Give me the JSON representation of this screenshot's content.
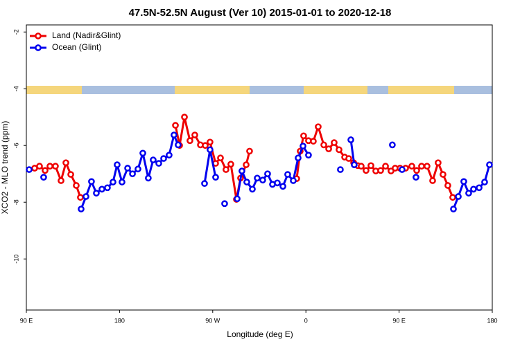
{
  "chart_data": {
    "type": "line",
    "title": "47.5N-52.5N August (Ver 10)   2015-01-01 to 2020-12-18",
    "xlabel": "Longitude (deg E)",
    "ylabel": "XCO2 - MLO trend (ppm)",
    "xlim": [
      90,
      540
    ],
    "xticks": [
      {
        "value": 90,
        "label": "90 E"
      },
      180,
      {
        "value": 270,
        "label": "90 W"
      },
      {
        "value": 360,
        "label": "0"
      },
      {
        "value": 450,
        "label": "90 E"
      },
      {
        "value": 540,
        "label": "180"
      }
    ],
    "ylim": [
      -11.8,
      -1.75
    ],
    "yticks": [
      -2,
      -4,
      -6,
      -8,
      -10
    ],
    "legend": "top-left",
    "series": [
      {
        "name": "Land (Nadir&Glint)",
        "color": "#ee0000",
        "x": [
          98.0,
          102.7,
          108.1,
          112.8,
          118.1,
          123.5,
          128.2,
          132.9,
          138.2,
          142.2,
          null,
          234.0,
          238.0,
          242.7,
          248.0,
          252.7,
          258.1,
          262.8,
          267.4,
          272.8,
          277.5,
          282.8,
          287.5,
          292.9,
          296.9,
          302.3,
          305.6,
          null,
          351.1,
          354.5,
          357.8,
          362.5,
          367.2,
          371.9,
          377.3,
          382.0,
          387.3,
          392.0,
          397.4,
          401.4,
          406.1,
          410.1,
          413.4,
          418.1,
          422.8,
          427.5,
          432.2,
          436.9,
          442.2,
          446.2,
          450.9,
          456.3,
          462.3,
          467.0,
          471.7,
          477.0,
          482.4,
          487.7,
          492.4,
          497.1,
          501.8
        ],
        "values": [
          -6.8,
          -6.73,
          -6.88,
          -6.73,
          -6.73,
          -7.24,
          -6.61,
          -7.02,
          -7.41,
          -7.83,
          null,
          -5.29,
          -6.0,
          -5.0,
          -5.83,
          -5.63,
          -5.98,
          -6.0,
          -5.88,
          -6.63,
          -6.44,
          -6.85,
          -6.66,
          -7.9,
          -7.15,
          -6.68,
          -6.2,
          null,
          -7.17,
          -6.2,
          -5.66,
          -5.83,
          -5.85,
          -5.34,
          -5.98,
          -6.12,
          -5.9,
          -6.15,
          -6.41,
          -6.46,
          -6.61,
          -6.71,
          -6.73,
          -6.88,
          -6.71,
          -6.9,
          -6.88,
          -6.73,
          -6.9,
          -6.8,
          -6.8,
          -6.8,
          -6.73,
          -6.88,
          -6.73,
          -6.73,
          -7.24,
          -6.61,
          -7.02,
          -7.41,
          -7.83
        ]
      },
      {
        "name": "Ocean (Glint)",
        "color": "#0000ee",
        "x": [
          92.7,
          null,
          106.7,
          null,
          142.9,
          147.6,
          152.9,
          157.6,
          163.0,
          168.3,
          173.7,
          177.7,
          182.4,
          187.8,
          192.5,
          197.8,
          202.5,
          207.8,
          212.5,
          217.9,
          222.6,
          227.9,
          232.6,
          236.6,
          null,
          262.1,
          267.4,
          272.8,
          null,
          281.5,
          null,
          293.6,
          298.2,
          302.9,
          308.3,
          313.0,
          318.3,
          323.0,
          327.7,
          332.4,
          337.8,
          342.4,
          347.8,
          352.5,
          357.2,
          362.5,
          null,
          393.3,
          null,
          403.4,
          406.7,
          null,
          443.5,
          null,
          452.9,
          null,
          466.3,
          null,
          502.5,
          507.2,
          512.5,
          517.2,
          521.9,
          527.3,
          532.6,
          537.3
        ],
        "values": [
          -6.85,
          null,
          -7.12,
          null,
          -8.24,
          -7.8,
          -7.27,
          -7.68,
          -7.54,
          -7.49,
          -7.29,
          -6.68,
          -7.29,
          -6.8,
          -7.0,
          -6.83,
          -6.27,
          -7.15,
          -6.51,
          -6.63,
          -6.46,
          -6.34,
          -5.63,
          -5.98,
          null,
          -7.34,
          -6.15,
          -7.12,
          null,
          -8.05,
          null,
          -7.88,
          -6.9,
          -7.29,
          -7.54,
          -7.15,
          -7.22,
          -7.0,
          -7.37,
          -7.32,
          -7.44,
          -7.02,
          -7.24,
          -6.44,
          -6.02,
          -6.34,
          null,
          -6.85,
          null,
          -5.8,
          -6.68,
          null,
          -5.98,
          null,
          -6.85,
          null,
          -7.12,
          null,
          -8.24,
          -7.8,
          -7.27,
          -7.68,
          -7.54,
          -7.49,
          -7.29,
          -6.68
        ]
      }
    ]
  }
}
